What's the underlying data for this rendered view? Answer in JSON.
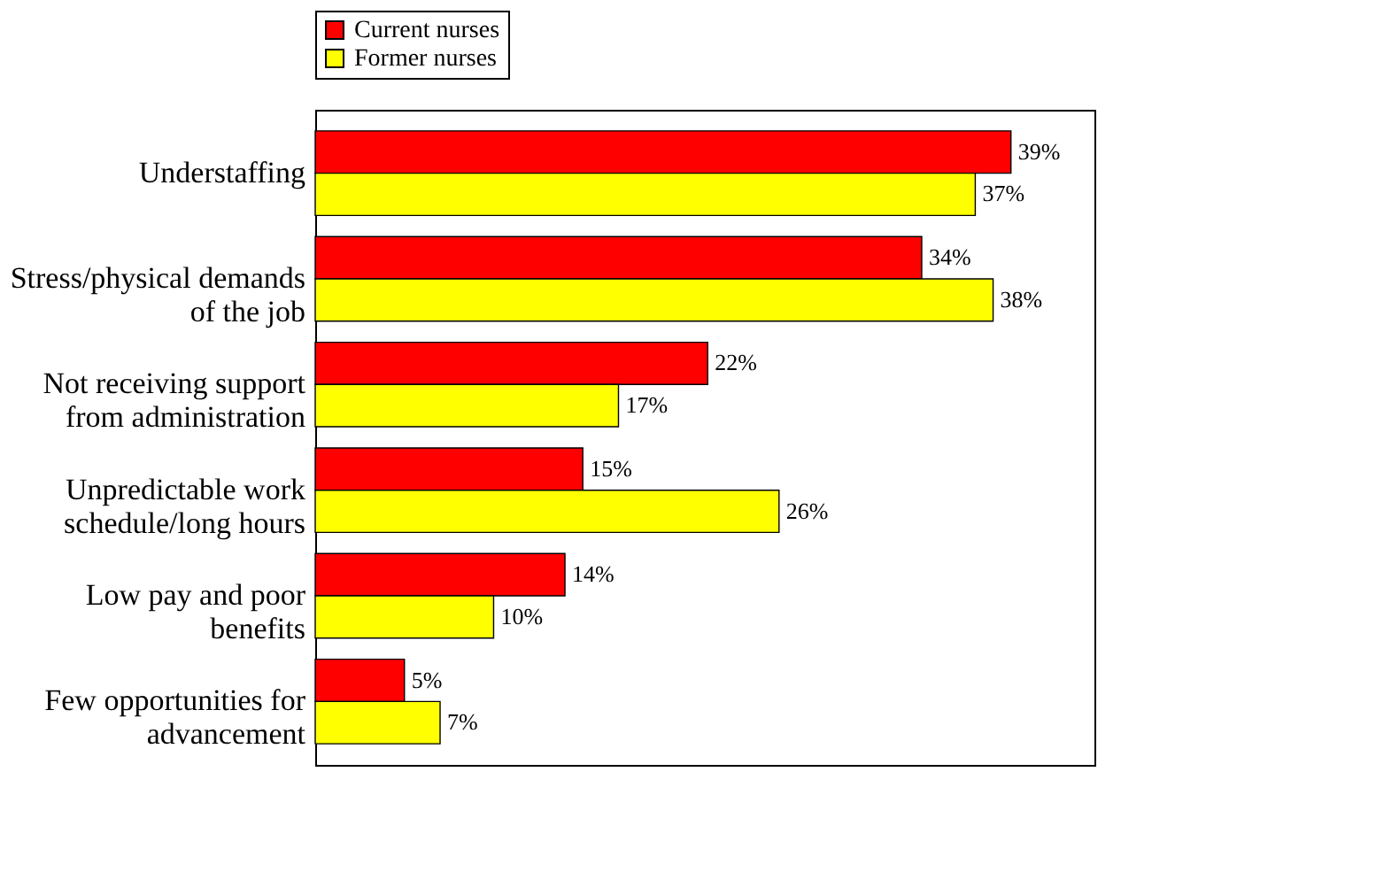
{
  "chart_data": {
    "type": "bar",
    "orientation": "horizontal",
    "legend": "top",
    "categories": [
      "Understaffing",
      "Stress/physical demands\nof the job",
      "Not receiving support\nfrom administration",
      "Unpredictable work\nschedule/long hours",
      "Low pay and poor\nbenefits",
      "Few opportunities for\nadvancement"
    ],
    "series": [
      {
        "name": "Current nurses",
        "color": "#ff0000",
        "values": [
          39,
          34,
          22,
          15,
          14,
          5
        ],
        "value_labels": [
          "39%",
          "34%",
          "22%",
          "15%",
          "14%",
          "5%"
        ]
      },
      {
        "name": "Former nurses",
        "color": "#ffff00",
        "values": [
          37,
          38,
          17,
          26,
          10,
          7
        ],
        "value_labels": [
          "37%",
          "38%",
          "17%",
          "26%",
          "10%",
          "7%"
        ]
      }
    ]
  }
}
